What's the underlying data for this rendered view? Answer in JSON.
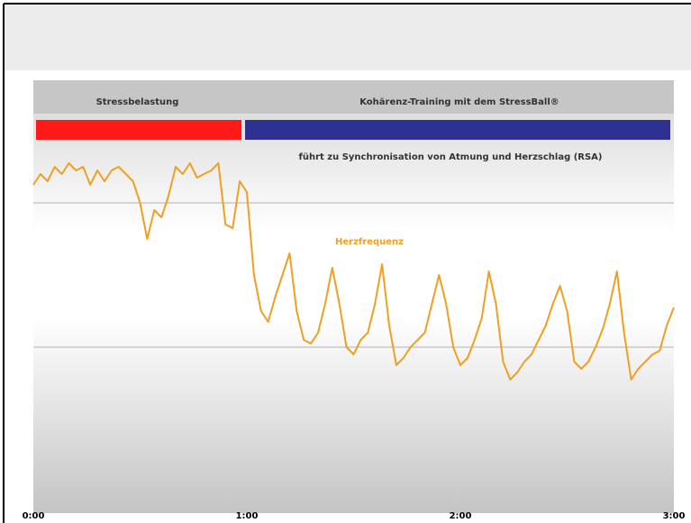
{
  "chart_data": {
    "type": "line",
    "phases": [
      {
        "label": "Stressbelastung",
        "color": "#ff1a1a",
        "start": 0,
        "end": 58.5
      },
      {
        "label": "Kohärenz-Training mit dem StressBall®",
        "color": "#2e3192",
        "start": 59.5,
        "end": 180
      }
    ],
    "annotation": "führt zu Synchronisation von Atmung und Herzschlag (RSA)",
    "x": [
      0,
      2,
      4,
      6,
      8,
      10,
      12,
      14,
      16,
      18,
      20,
      22,
      24,
      26,
      28,
      30,
      32,
      34,
      36,
      38,
      40,
      42,
      44,
      46,
      48,
      50,
      52,
      54,
      56,
      58,
      60,
      62,
      64,
      66,
      68,
      70,
      72,
      74,
      76,
      78,
      80,
      82,
      84,
      86,
      88,
      90,
      92,
      94,
      96,
      98,
      100,
      102,
      104,
      106,
      108,
      110,
      112,
      114,
      116,
      118,
      120,
      122,
      124,
      126,
      128,
      130,
      132,
      134,
      136,
      138,
      140,
      142,
      144,
      146,
      148,
      150,
      152,
      154,
      156,
      158,
      160,
      162,
      164,
      166,
      168,
      170,
      172,
      174,
      176,
      178,
      180
    ],
    "series": [
      {
        "name": "Herzfrequenz",
        "color": "#f0a020",
        "values": [
          82.5,
          84,
          83,
          85,
          84,
          85.5,
          84.5,
          85,
          82.5,
          84.5,
          83,
          84.5,
          85,
          84,
          83,
          80,
          75,
          79,
          78,
          81,
          85,
          84,
          85.5,
          83.5,
          84,
          84.5,
          85.5,
          77,
          76.5,
          83,
          81.5,
          70,
          65,
          63.5,
          67,
          70,
          73,
          65,
          61,
          60.5,
          62,
          66,
          71,
          66,
          60,
          59,
          61,
          62,
          66,
          71.5,
          63,
          57.5,
          58.5,
          60,
          61,
          62,
          66,
          70,
          66,
          60,
          57.5,
          58.5,
          61,
          64,
          70.5,
          66,
          58,
          55.5,
          56.5,
          58,
          59,
          61,
          63,
          66,
          68.5,
          65,
          58,
          57,
          58,
          60,
          62.5,
          66,
          70.5,
          62,
          55.5,
          57,
          58,
          59,
          59.5,
          63,
          65.5
        ]
      }
    ],
    "xlim": [
      0,
      180
    ],
    "xticks": [
      {
        "value": 0,
        "label": "0:00"
      },
      {
        "value": 60,
        "label": "1:00"
      },
      {
        "value": 120,
        "label": "2:00"
      },
      {
        "value": 180,
        "label": "3:00"
      }
    ],
    "ylim": [
      37,
      97
    ],
    "yticks": [
      60,
      80
    ],
    "grid": true
  }
}
